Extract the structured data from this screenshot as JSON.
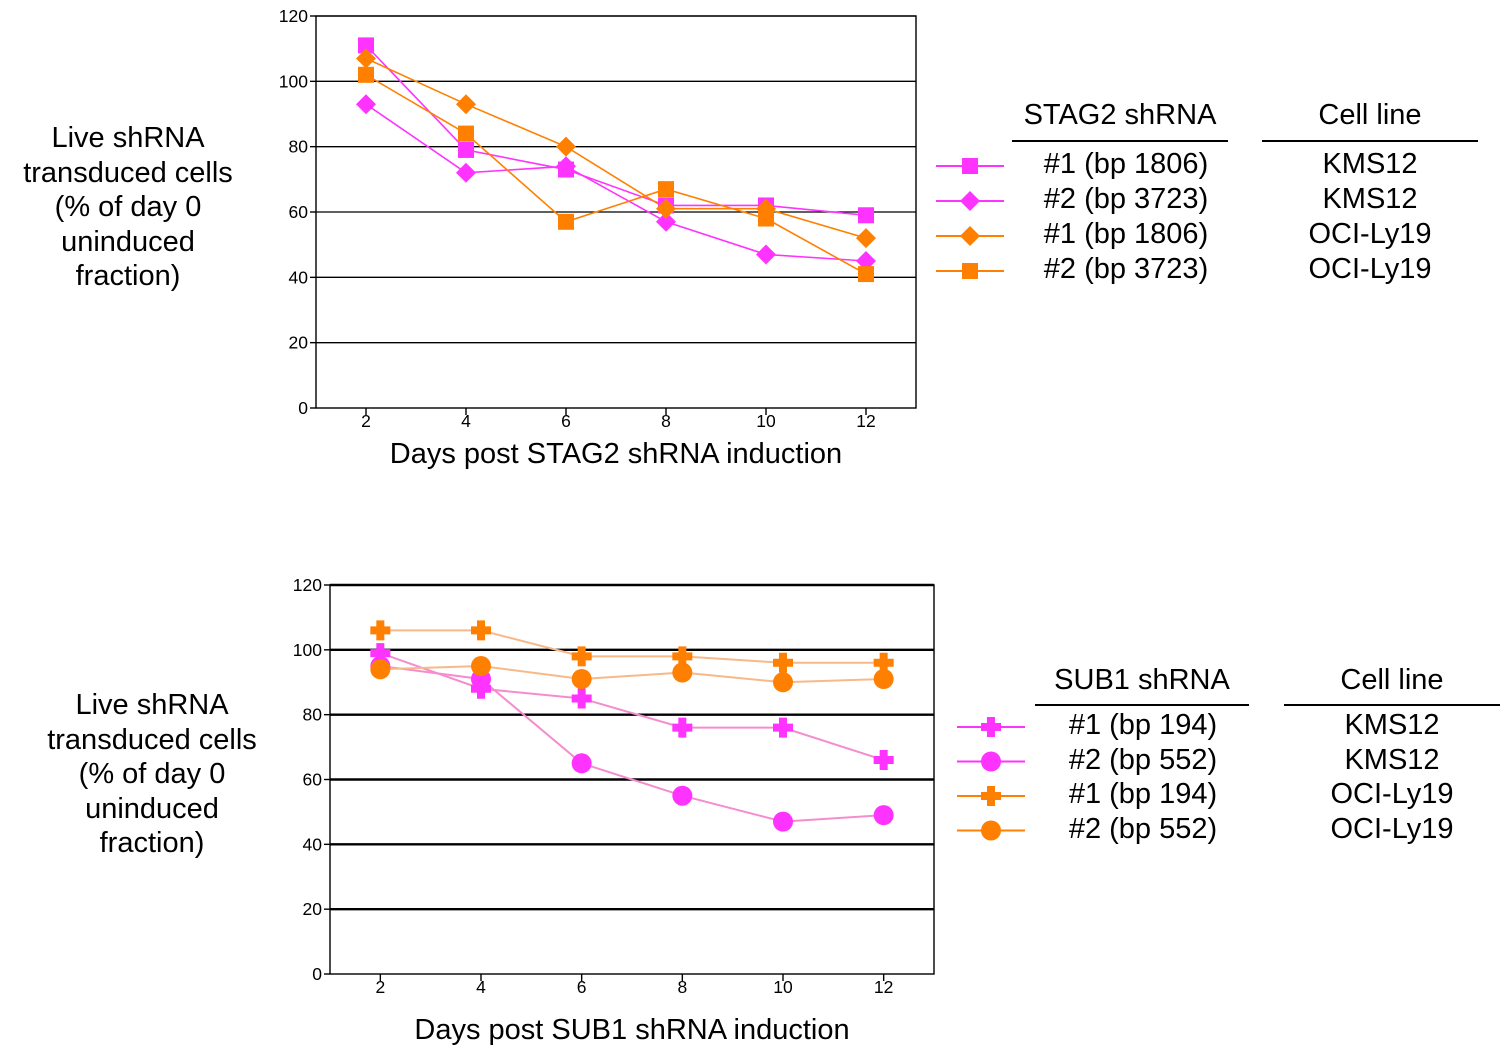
{
  "colors": {
    "pink": "#ff33ff",
    "orange": "#ff8000",
    "pink_line": "#f58ccf",
    "orange_line": "#f8b98a"
  },
  "chart_data": [
    {
      "type": "line",
      "xlabel": "Days post STAG2 shRNA induction",
      "ylabel": "Live shRNA\ntransduced cells\n(% of day 0\nuninduced\nfraction)",
      "x": [
        2,
        4,
        6,
        8,
        10,
        12
      ],
      "xlim": [
        1,
        13
      ],
      "ylim": [
        0,
        120
      ],
      "yticks": [
        0,
        20,
        40,
        60,
        80,
        100,
        120
      ],
      "grid": true,
      "series": [
        {
          "name": "#1 (bp 1806)",
          "cell_line": "KMS12",
          "color": "#ff33ff",
          "marker": "square",
          "values": [
            111,
            79,
            73,
            62,
            62,
            59
          ]
        },
        {
          "name": "#2 (bp 3723)",
          "cell_line": "KMS12",
          "color": "#ff33ff",
          "marker": "diamond",
          "values": [
            93,
            72,
            74,
            57,
            47,
            45
          ]
        },
        {
          "name": "#1 (bp 1806)",
          "cell_line": "OCI-Ly19",
          "color": "#ff8000",
          "marker": "diamond",
          "values": [
            107,
            93,
            80,
            61,
            61,
            52
          ]
        },
        {
          "name": "#2 (bp 3723)",
          "cell_line": "OCI-Ly19",
          "color": "#ff8000",
          "marker": "square",
          "values": [
            102,
            84,
            57,
            67,
            58,
            41
          ]
        }
      ],
      "legend": {
        "title": "STAG2 shRNA",
        "cell_line_title": "Cell line",
        "position": "right"
      }
    },
    {
      "type": "line",
      "xlabel": "Days post SUB1 shRNA induction",
      "ylabel": "Live shRNA\ntransduced cells\n(% of day 0\nuninduced\nfraction)",
      "x": [
        2,
        4,
        6,
        8,
        10,
        12
      ],
      "xlim": [
        1,
        13
      ],
      "ylim": [
        0,
        120
      ],
      "yticks": [
        0,
        20,
        40,
        60,
        80,
        100,
        120
      ],
      "grid": true,
      "series": [
        {
          "name": "#1 (bp 194)",
          "cell_line": "KMS12",
          "color": "#ff33ff",
          "marker": "plus",
          "values": [
            99,
            88,
            85,
            76,
            76,
            66
          ]
        },
        {
          "name": "#2 (bp 552)",
          "cell_line": "KMS12",
          "color": "#ff33ff",
          "marker": "circle",
          "values": [
            95,
            91,
            65,
            55,
            47,
            49
          ]
        },
        {
          "name": "#1 (bp 194)",
          "cell_line": "OCI-Ly19",
          "color": "#ff8000",
          "marker": "plus",
          "values": [
            106,
            106,
            98,
            98,
            96,
            96
          ]
        },
        {
          "name": "#2 (bp 552)",
          "cell_line": "OCI-Ly19",
          "color": "#ff8000",
          "marker": "circle",
          "values": [
            94,
            95,
            91,
            93,
            90,
            91
          ]
        }
      ],
      "legend": {
        "title": "SUB1 shRNA",
        "cell_line_title": "Cell line",
        "position": "right"
      }
    }
  ]
}
